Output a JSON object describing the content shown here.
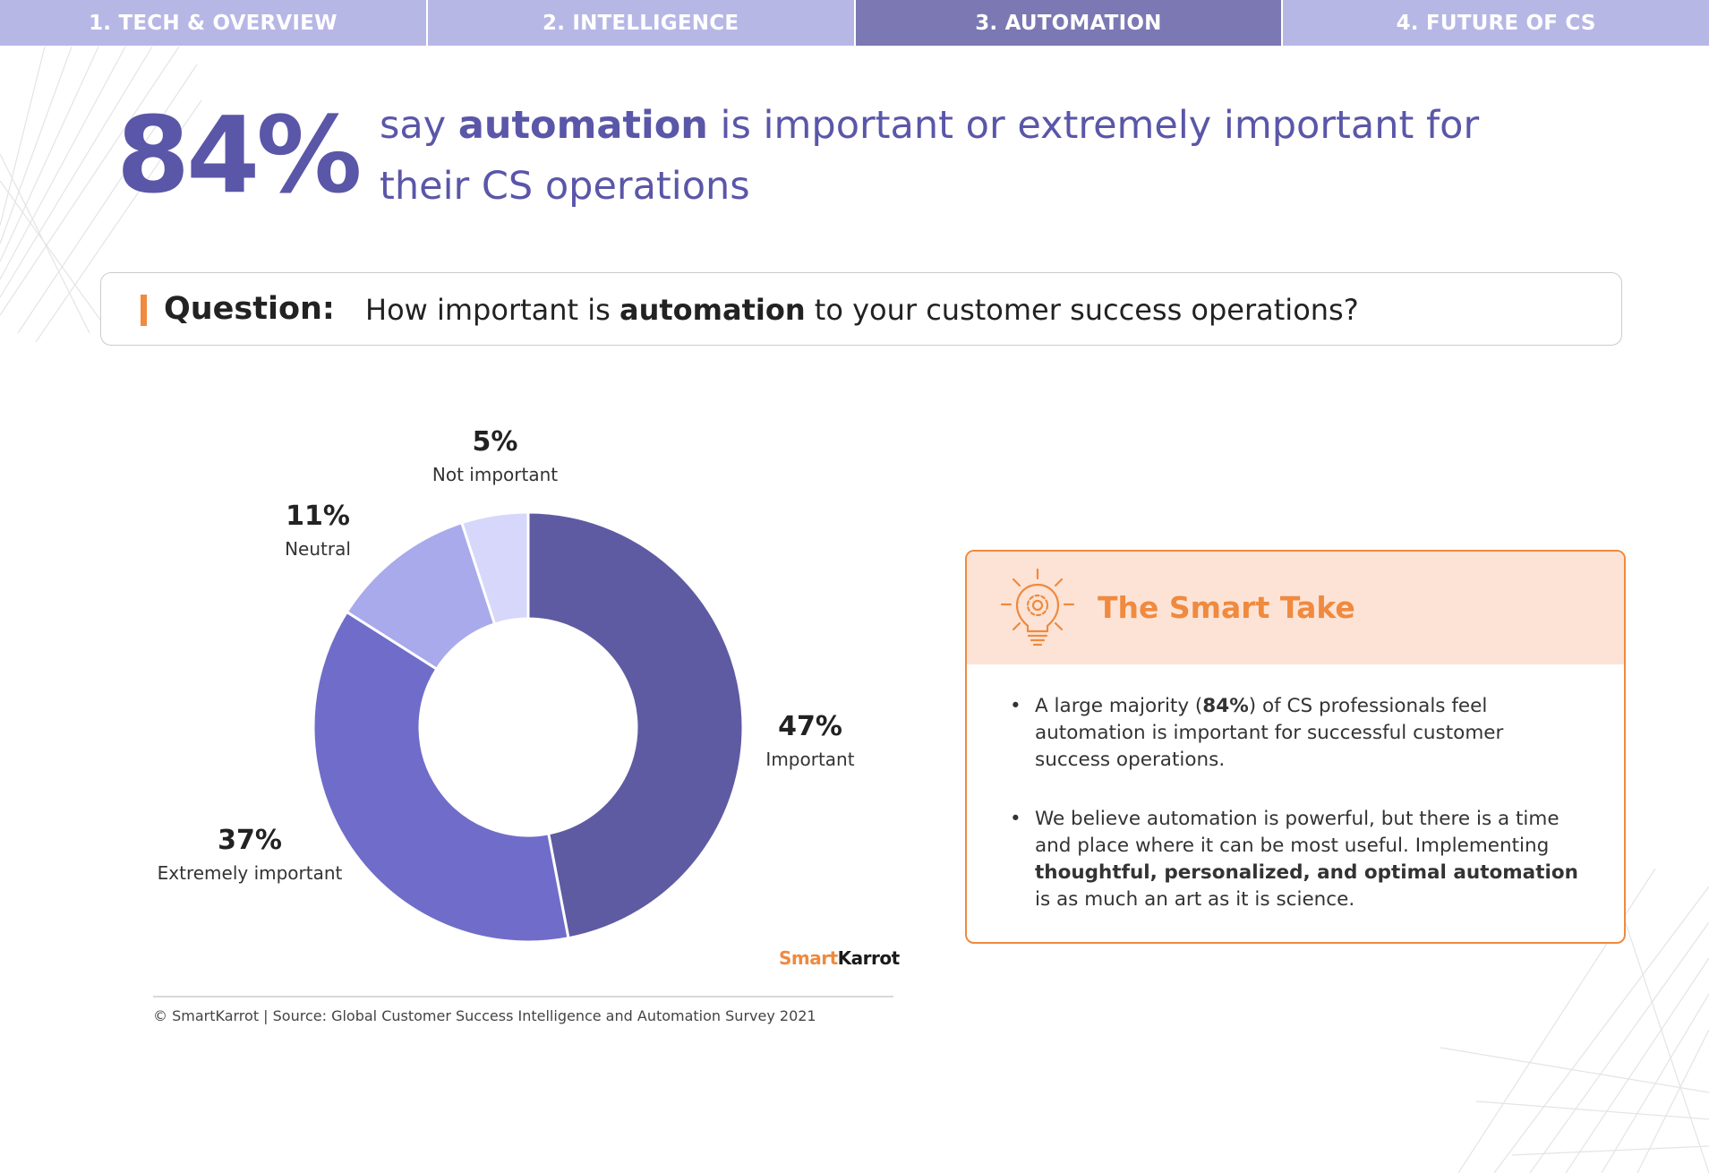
{
  "nav": {
    "tabs": [
      {
        "label": "1. TECH & OVERVIEW",
        "color": "#b7b7e6"
      },
      {
        "label": "2. INTELLIGENCE",
        "color": "#b7b7e6"
      },
      {
        "label": "3. AUTOMATION",
        "color": "#7b78b3",
        "active": true
      },
      {
        "label": "4. FUTURE OF CS",
        "color": "#b7b7e6"
      }
    ]
  },
  "headline": {
    "stat": "84%",
    "text_pre": "say ",
    "text_bold": "automation",
    "text_post": " is important or extremely important for their CS operations"
  },
  "question": {
    "label": "Question:",
    "text_pre": "How important is ",
    "text_bold": "automation",
    "text_post": " to your customer success operations?"
  },
  "chart_data": {
    "type": "pie",
    "donut": true,
    "slices": [
      {
        "label": "Important",
        "value": 47,
        "display": "47%",
        "color": "#5e5ba3"
      },
      {
        "label": "Extremely important",
        "value": 37,
        "display": "37%",
        "color": "#6f6dc9"
      },
      {
        "label": "Neutral",
        "value": 11,
        "display": "11%",
        "color": "#a9aaeb"
      },
      {
        "label": "Not important",
        "value": 5,
        "display": "5%",
        "color": "#d6d7fa"
      }
    ]
  },
  "smart_take": {
    "title": "The Smart Take",
    "bullet1": {
      "pre": "A large majority (",
      "bold": "84%",
      "post": ") of CS professionals feel automation is important for successful customer success operations."
    },
    "bullet2": {
      "pre": "We believe automation is powerful, but there is a time and place where it can be most useful. Implementing ",
      "bold": "thoughtful, personalized, and optimal automation",
      "post": " is as much an art as it is science."
    },
    "accent_color": "#ef8a3f"
  },
  "logo": {
    "part1": "Smart",
    "part2": "Karrot"
  },
  "footer": "© SmartKarrot | Source: Global Customer Success Intelligence and Automation Survey 2021"
}
